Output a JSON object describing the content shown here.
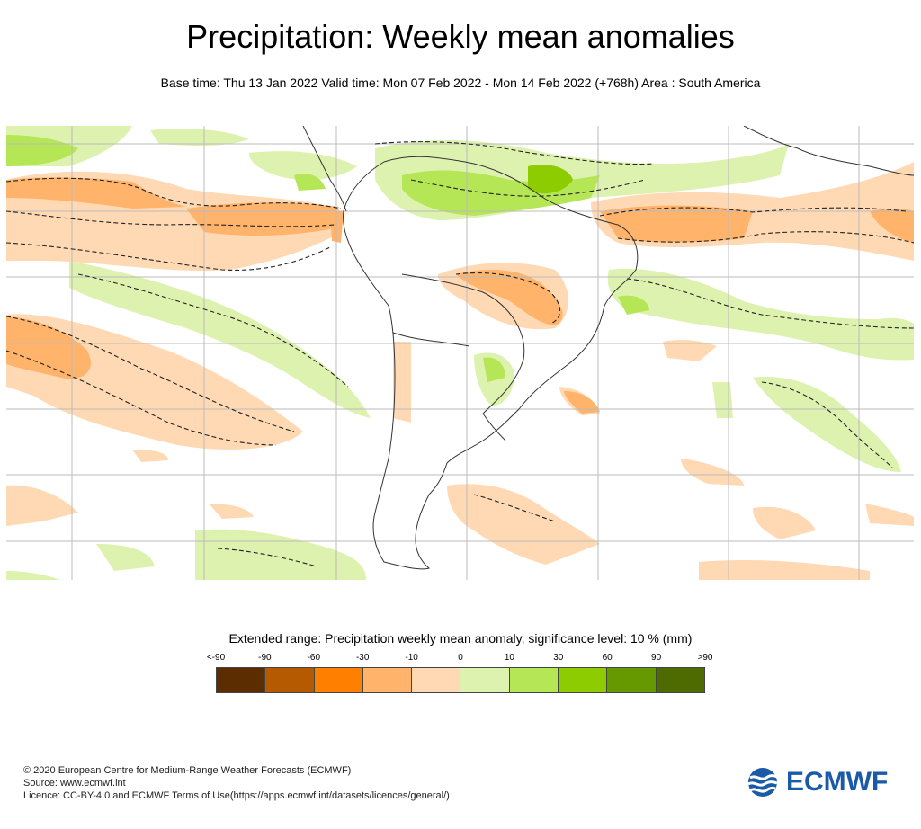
{
  "header": {
    "title": "Precipitation: Weekly mean anomalies",
    "subtitle": "Base time: Thu 13 Jan 2022 Valid time: Mon 07 Feb 2022 - Mon 14 Feb 2022 (+768h) Area : South America"
  },
  "map": {
    "region": "South America",
    "graticule": true,
    "significance_contour": "dashed",
    "colors": {
      "land_outline": "#333333",
      "grid": "#bbbbbb",
      "dashed_contour": "#222222"
    }
  },
  "legend": {
    "title": "Extended range: Precipitation weekly mean anomaly, significance level: 10 % (mm)",
    "tick_labels": [
      "<-90",
      "-90",
      "-60",
      "-30",
      "-10",
      "0",
      "10",
      "30",
      "60",
      "90",
      ">90"
    ],
    "bins": [
      {
        "label": "<-90 to -90",
        "color": "#5c2d00"
      },
      {
        "label": "-90 to -60",
        "color": "#b55a00"
      },
      {
        "label": "-60 to -30",
        "color": "#ff8000"
      },
      {
        "label": "-30 to -10",
        "color": "#ffb36b"
      },
      {
        "label": "-10 to 0",
        "color": "#ffd9b3"
      },
      {
        "label": "0 to 10",
        "color": "#def2b0"
      },
      {
        "label": "10 to 30",
        "color": "#b5e656"
      },
      {
        "label": "30 to 60",
        "color": "#8ccc00"
      },
      {
        "label": "60 to 90",
        "color": "#669900"
      },
      {
        "label": "90 to >90",
        "color": "#4d6b00"
      }
    ]
  },
  "footer": {
    "copyright": "© 2020 European Centre for Medium-Range Weather Forecasts (ECMWF)",
    "source": "Source: www.ecmwf.int",
    "licence": "Licence: CC-BY-4.0 and ECMWF Terms of Use(https://apps.ecmwf.int/datasets/licences/general/)"
  },
  "logo": {
    "text": "ECMWF",
    "color": "#1a5aa6"
  }
}
